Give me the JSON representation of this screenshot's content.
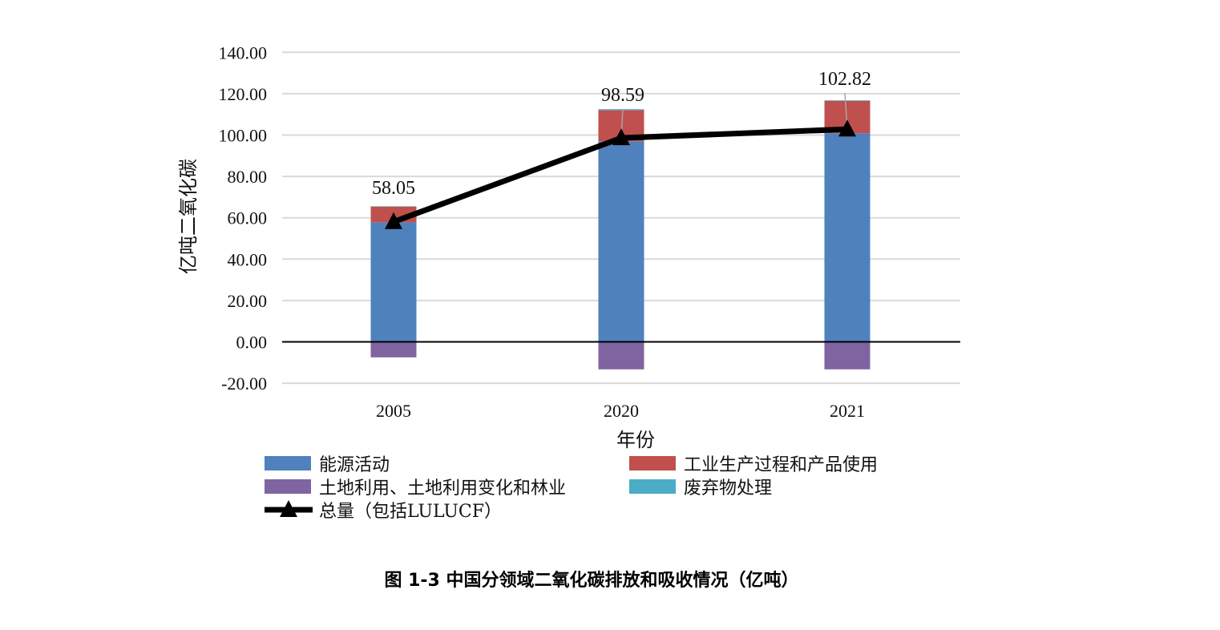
{
  "chart_data": {
    "type": "bar",
    "subtype": "stacked-bar-with-line",
    "title": "图 1-3 中国分领域二氧化碳排放和吸收情况（亿吨）",
    "xlabel": "年份",
    "ylabel": "亿吨二氧化碳",
    "ylim": [
      -20,
      140
    ],
    "yticks": [
      "-20.00",
      "0.00",
      "20.00",
      "40.00",
      "60.00",
      "80.00",
      "100.00",
      "120.00",
      "140.00"
    ],
    "ytick_values": [
      -20,
      0,
      20,
      40,
      60,
      80,
      100,
      120,
      140
    ],
    "grid": true,
    "legend_position": "bottom",
    "categories": [
      "2005",
      "2020",
      "2021"
    ],
    "series": [
      {
        "name": "能源活动",
        "type": "bar",
        "color": "#4f81bd",
        "values": [
          57.8,
          97.0,
          100.9
        ]
      },
      {
        "name": "工业生产过程和产品使用",
        "type": "bar",
        "color": "#c0504d",
        "values": [
          7.6,
          15.0,
          15.6
        ]
      },
      {
        "name": "土地利用、土地利用变化和林业",
        "type": "bar",
        "color": "#8064a2",
        "values": [
          -7.5,
          -13.3,
          -13.3
        ]
      },
      {
        "name": "废弃物处理",
        "type": "bar",
        "color": "#4bacc6",
        "values": [
          0.2,
          0.5,
          0.3
        ]
      },
      {
        "name": "总量（包括LULUCF）",
        "type": "line",
        "color": "#000000",
        "marker": "triangle",
        "values": [
          58.05,
          98.59,
          102.82
        ],
        "labels": [
          "58.05",
          "98.59",
          "102.82"
        ]
      }
    ]
  }
}
